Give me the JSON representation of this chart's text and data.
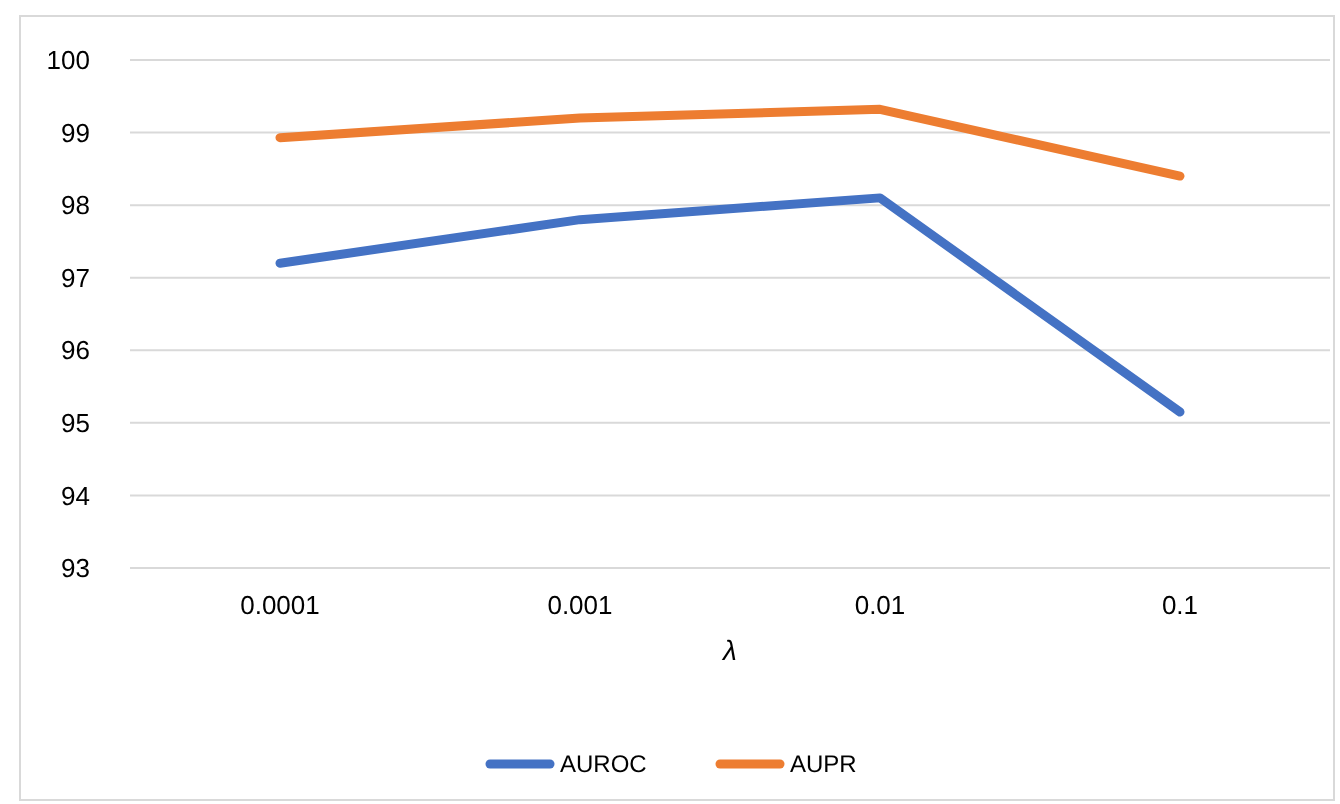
{
  "chart_data": {
    "type": "line",
    "xlabel": "λ",
    "categories": [
      "0.0001",
      "0.001",
      "0.01",
      "0.1"
    ],
    "series": [
      {
        "name": "AUROC",
        "color": "#4472c4",
        "values": [
          97.2,
          97.8,
          98.1,
          95.15
        ]
      },
      {
        "name": "AUPR",
        "color": "#ed7d31",
        "values": [
          98.93,
          99.2,
          99.32,
          98.4
        ]
      }
    ],
    "ylim": [
      93,
      100
    ],
    "yticks": [
      93,
      94,
      95,
      96,
      97,
      98,
      99,
      100
    ],
    "grid": "y",
    "legend": "bottom",
    "marker": "none",
    "line_style": "solid"
  }
}
